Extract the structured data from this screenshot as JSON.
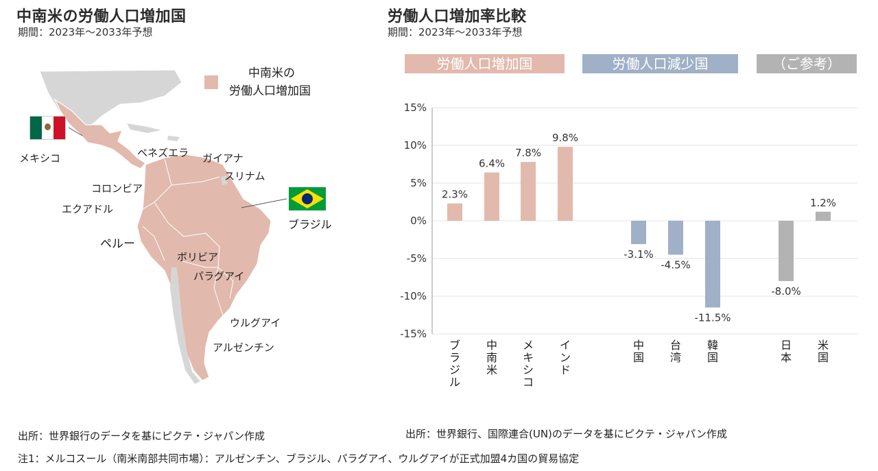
{
  "left": {
    "title": "中南米の労働人口増加国",
    "subtitle": "期間：2023年～2033年予想",
    "legend_label_line1": "中南米の",
    "legend_label_line2": "労働人口増加国",
    "country_labels": {
      "mexico": "メキシコ",
      "venezuela": "ベネズエラ",
      "guyana": "ガイアナ",
      "suriname": "スリナム",
      "colombia": "コロンビア",
      "ecuador": "エクアドル",
      "peru": "ペルー",
      "brazil": "ブラジル",
      "bolivia": "ボリビア",
      "paraguay": "パラグアイ",
      "uruguay": "ウルグアイ",
      "argentina": "アルゼンチン"
    },
    "source": "出所：世界銀行のデータを基にピクテ・ジャパン作成"
  },
  "right": {
    "title": "労働人口増加率比較",
    "subtitle": "期間：2023年～2033年予想",
    "groups": [
      {
        "label": "労働人口増加国",
        "color": "#e2b9ad"
      },
      {
        "label": "労働人口減少国",
        "color": "#9fb0c7"
      },
      {
        "label": "（ご参考）",
        "color": "#b3b3b3"
      }
    ],
    "source": "出所：世界銀行、国際連合(UN)のデータを基にピクテ・ジャパン作成"
  },
  "note": "注1：メルコスール（南米南部共同市場）：アルゼンチン、ブラジル、パラグアイ、ウルグアイが正式加盟4カ国の貿易協定",
  "chart_data": {
    "type": "bar",
    "title": "労働人口増加率比較",
    "categories": [
      "ブラジル",
      "中南米",
      "メキシコ",
      "インド",
      "中国",
      "台湾",
      "韓国",
      "日本",
      "米国"
    ],
    "values": [
      2.3,
      6.4,
      7.8,
      9.8,
      -3.1,
      -4.5,
      -11.5,
      -8.0,
      1.2
    ],
    "value_labels": [
      "2.3%",
      "6.4%",
      "7.8%",
      "9.8%",
      "-3.1%",
      "-4.5%",
      "-11.5%",
      "-8.0%",
      "1.2%"
    ],
    "groups": [
      0,
      0,
      0,
      0,
      1,
      1,
      1,
      2,
      2
    ],
    "ylim": [
      -15,
      15
    ],
    "yticks": [
      15,
      10,
      5,
      0,
      -5,
      -10,
      -15
    ],
    "ytick_labels": [
      "15%",
      "10%",
      "5%",
      "0%",
      "-5%",
      "-10%",
      "-15%"
    ],
    "grid": true,
    "colors": [
      "#e2b9ad",
      "#9fb0c7",
      "#b3b3b3"
    ]
  }
}
